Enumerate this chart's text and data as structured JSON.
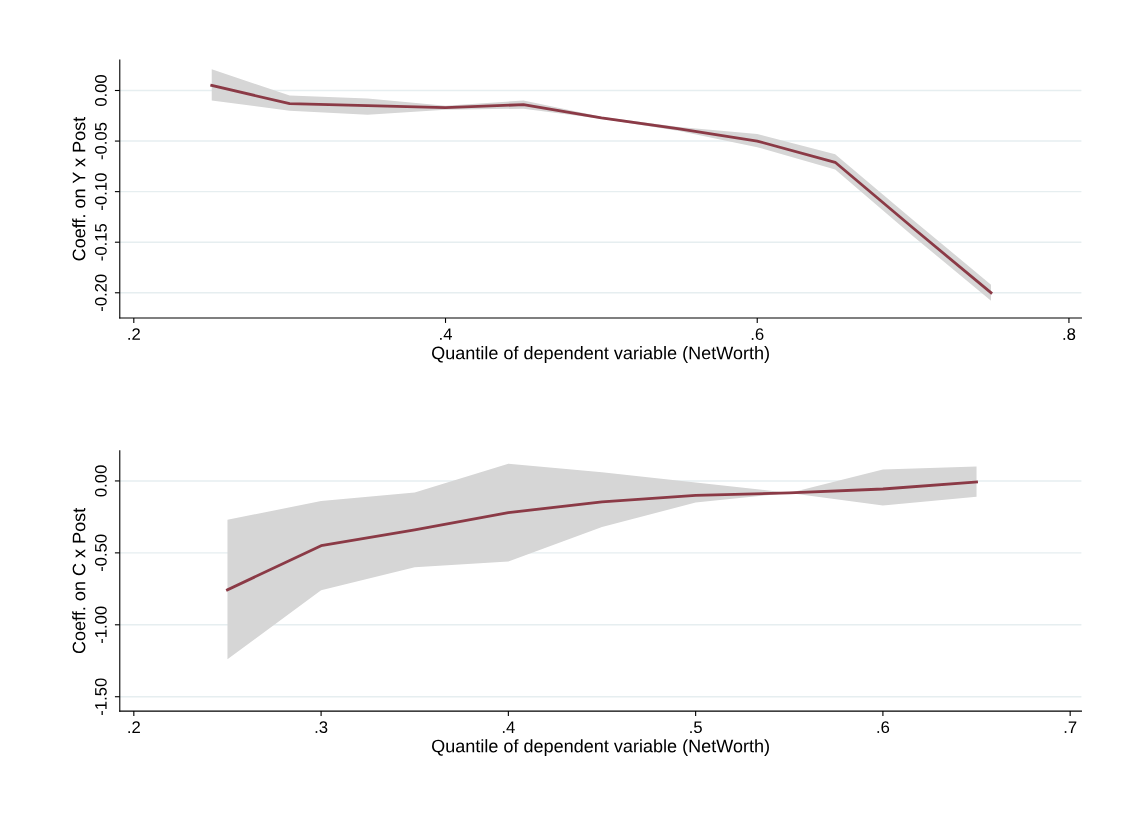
{
  "chart_data": [
    {
      "type": "line",
      "xlabel": "Quantile of dependent variable (NetWorth)",
      "ylabel": "Coeff. on Y x Post",
      "grid": "y",
      "legend": false,
      "marker": "none",
      "line_style": "solid",
      "xlim": [
        0.191,
        0.808
      ],
      "ylim": [
        -0.225,
        0.03
      ],
      "xticks": [
        {
          "value": 0.2,
          "label": ".2"
        },
        {
          "value": 0.4,
          "label": ".4"
        },
        {
          "value": 0.6,
          "label": ".6"
        },
        {
          "value": 0.8,
          "label": ".8"
        }
      ],
      "yticks": [
        {
          "value": -0.2,
          "label": "-0.20"
        },
        {
          "value": -0.15,
          "label": "-0.15"
        },
        {
          "value": -0.1,
          "label": "-0.10"
        },
        {
          "value": -0.05,
          "label": "-0.05"
        },
        {
          "value": 0,
          "label": "0.00"
        }
      ],
      "x": [
        0.25,
        0.3,
        0.35,
        0.4,
        0.45,
        0.5,
        0.55,
        0.6,
        0.65,
        0.7,
        0.75
      ],
      "series": [
        {
          "color": "#8b3a46",
          "values": [
            0.005,
            -0.013,
            -0.015,
            -0.017,
            -0.014,
            -0.027,
            -0.038,
            -0.05,
            -0.071,
            -0.136,
            -0.2
          ],
          "lower": [
            -0.01,
            -0.02,
            -0.024,
            -0.019,
            -0.018,
            -0.028,
            -0.04,
            -0.056,
            -0.078,
            -0.144,
            -0.208
          ],
          "upper": [
            0.021,
            -0.005,
            -0.008,
            -0.015,
            -0.01,
            -0.026,
            -0.036,
            -0.043,
            -0.063,
            -0.128,
            -0.192
          ]
        }
      ]
    },
    {
      "type": "line",
      "xlabel": "Quantile of dependent variable (NetWorth)",
      "ylabel": "Coeff. on C x Post",
      "grid": "y",
      "legend": false,
      "marker": "none",
      "line_style": "solid",
      "xlim": [
        0.1925,
        0.706
      ],
      "ylim": [
        -1.6,
        0.21
      ],
      "xticks": [
        {
          "value": 0.2,
          "label": ".2"
        },
        {
          "value": 0.3,
          "label": ".3"
        },
        {
          "value": 0.4,
          "label": ".4"
        },
        {
          "value": 0.5,
          "label": ".5"
        },
        {
          "value": 0.6,
          "label": ".6"
        },
        {
          "value": 0.7,
          "label": ".7"
        }
      ],
      "yticks": [
        {
          "value": -1.5,
          "label": "-1.50"
        },
        {
          "value": -1.0,
          "label": "-1.00"
        },
        {
          "value": -0.5,
          "label": "-0.50"
        },
        {
          "value": 0,
          "label": "0.00"
        }
      ],
      "x": [
        0.25,
        0.3,
        0.35,
        0.4,
        0.45,
        0.5,
        0.55,
        0.6,
        0.65
      ],
      "series": [
        {
          "color": "#8b3a46",
          "values": [
            -0.757,
            -0.45,
            -0.34,
            -0.22,
            -0.146,
            -0.1,
            -0.083,
            -0.056,
            -0.007
          ],
          "lower": [
            -1.24,
            -0.76,
            -0.6,
            -0.56,
            -0.32,
            -0.15,
            -0.083,
            -0.17,
            -0.11
          ],
          "upper": [
            -0.27,
            -0.14,
            -0.08,
            0.12,
            0.06,
            -0.01,
            -0.083,
            0.08,
            0.1
          ]
        }
      ]
    }
  ]
}
